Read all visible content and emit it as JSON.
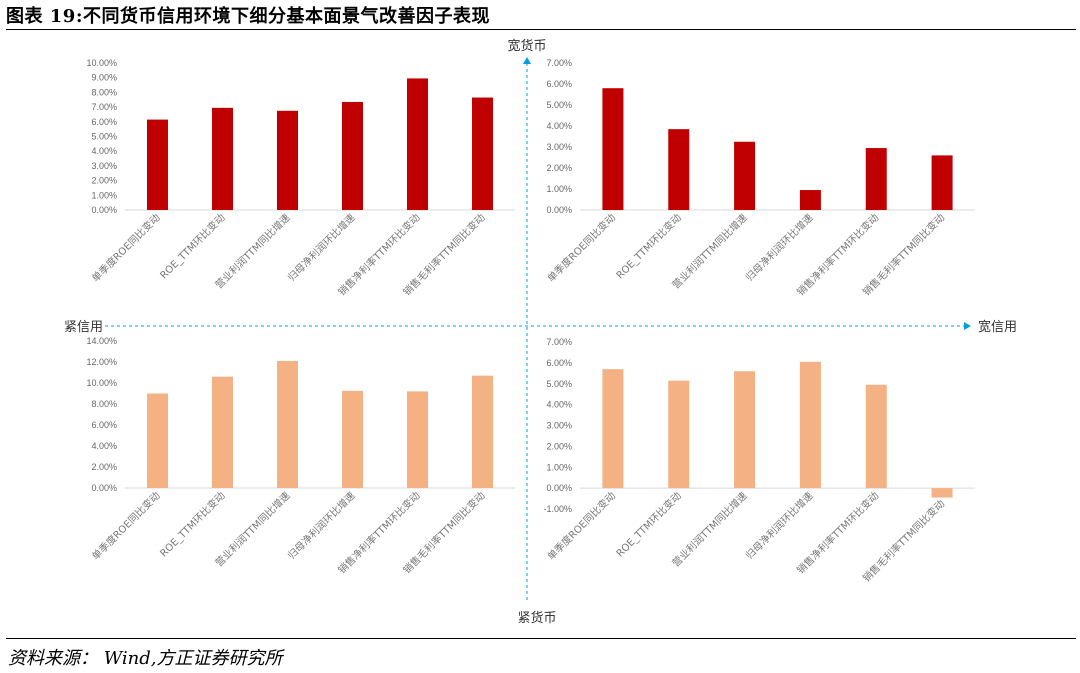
{
  "page": {
    "title": "图表 19:不同货币信用环境下细分基本面景气改善因子表现",
    "source": "资料来源： Wind,方正证券研究所"
  },
  "quadrant_labels": {
    "top": "宽货币",
    "bottom": "紧货币",
    "left": "紧信用",
    "right": "宽信用"
  },
  "colors": {
    "red": "#c00000",
    "peach": "#f4b183",
    "axis": "#00a0e0"
  },
  "chart_data": [
    {
      "type": "bar",
      "quadrant": "宽货币-紧信用",
      "color": "#c00000",
      "categories": [
        "单季度ROE同比变动",
        "ROE_TTM环比变动",
        "营业利润TTM同比增速",
        "归母净利润环比增速",
        "销售净利率TTM环比变动",
        "销售毛利率TTM同比变动"
      ],
      "values": [
        6.15,
        6.95,
        6.75,
        7.35,
        8.95,
        7.65
      ],
      "yticks": [
        "0.00%",
        "1.00%",
        "2.00%",
        "3.00%",
        "4.00%",
        "5.00%",
        "6.00%",
        "7.00%",
        "8.00%",
        "9.00%",
        "10.00%"
      ],
      "ylim": [
        0,
        10
      ]
    },
    {
      "type": "bar",
      "quadrant": "宽货币-宽信用",
      "color": "#c00000",
      "categories": [
        "单季度ROE同比变动",
        "ROE_TTM环比变动",
        "营业利润TTM同比增速",
        "归母净利润环比增速",
        "销售净利率TTM环比变动",
        "销售毛利率TTM同比变动"
      ],
      "values": [
        5.8,
        3.85,
        3.25,
        0.95,
        2.95,
        2.6
      ],
      "yticks": [
        "0.00%",
        "1.00%",
        "2.00%",
        "3.00%",
        "4.00%",
        "5.00%",
        "6.00%",
        "7.00%"
      ],
      "ylim": [
        0,
        7
      ]
    },
    {
      "type": "bar",
      "quadrant": "紧货币-紧信用",
      "color": "#f4b183",
      "categories": [
        "单季度ROE同比变动",
        "ROE_TTM环比变动",
        "营业利润TTM同比增速",
        "归母净利润环比增速",
        "销售净利率TTM环比变动",
        "销售毛利率TTM同比变动"
      ],
      "values": [
        9.0,
        10.6,
        12.1,
        9.25,
        9.2,
        10.7
      ],
      "yticks": [
        "0.00%",
        "2.00%",
        "4.00%",
        "6.00%",
        "8.00%",
        "10.00%",
        "12.00%",
        "14.00%"
      ],
      "ylim": [
        0,
        14
      ]
    },
    {
      "type": "bar",
      "quadrant": "紧货币-宽信用",
      "color": "#f4b183",
      "categories": [
        "单季度ROE同比变动",
        "ROE_TTM环比变动",
        "营业利润TTM同比增速",
        "归母净利润环比增速",
        "销售净利率TTM环比变动",
        "销售毛利率TTM同比变动"
      ],
      "values": [
        5.7,
        5.15,
        5.6,
        6.05,
        4.95,
        -0.45
      ],
      "yticks": [
        "-1.00%",
        "0.00%",
        "1.00%",
        "2.00%",
        "3.00%",
        "4.00%",
        "5.00%",
        "6.00%",
        "7.00%"
      ],
      "ylim": [
        -1,
        7
      ]
    }
  ]
}
